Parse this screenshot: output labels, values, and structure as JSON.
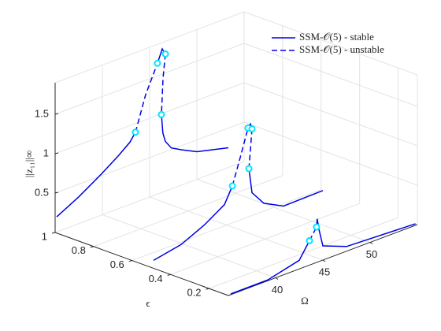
{
  "chart_data": {
    "type": "line3d",
    "xlabel": "Ω",
    "ylabel": "ϵ",
    "zlabel": "||z₁₁||∞",
    "xlim": [
      35,
      55
    ],
    "ylim": [
      0.1,
      1
    ],
    "zlim": [
      0,
      1.9
    ],
    "xticks": [
      40,
      45,
      50
    ],
    "yticks": [
      0.2,
      0.4,
      0.6,
      0.8,
      1
    ],
    "zticks": [
      0.5,
      1,
      1.5
    ],
    "grid": true,
    "legend": "top-right",
    "series": [
      {
        "name": "SSM-𝒪(5) - stable",
        "color": "#0000e6",
        "dashed": false,
        "segments": [
          {
            "y": 1,
            "x": [
              35.17,
              37.5,
              40,
              41.67,
              42.92,
              43.5
            ],
            "z": [
              0.19,
              0.34,
              0.53,
              0.67,
              0.79,
              0.89
            ]
          },
          {
            "y": 1,
            "x": [
              45.83,
              46.33,
              46.67
            ],
            "z": [
              1.66,
              1.82,
              1.74
            ]
          },
          {
            "y": 1,
            "x": [
              46.25,
              46.4,
              46.67,
              47.3,
              48.33,
              50,
              53.33
            ],
            "z": [
              0.99,
              0.75,
              0.63,
              0.52,
              0.45,
              0.35,
              0.25
            ]
          },
          {
            "y": 0.5,
            "x": [
              35.23,
              38.15,
              40.65,
              42.73,
              43.57
            ],
            "z": [
              0.08,
              0.15,
              0.29,
              0.45,
              0.65
            ]
          },
          {
            "y": 0.5,
            "x": [
              45.23,
              45.48,
              45.65
            ],
            "z": [
              1.31,
              1.35,
              1.28
            ]
          },
          {
            "y": 0.5,
            "x": [
              45.32,
              45.65,
              46.9,
              48.98,
              53.15
            ],
            "z": [
              0.79,
              0.47,
              0.28,
              0.15,
              0.16
            ]
          },
          {
            "y": 0.1,
            "x": [
              35.25,
              39.17,
              42.5,
              43.58
            ],
            "z": [
              0.01,
              0.01,
              0.11,
              0.31
            ]
          },
          {
            "y": 0.1,
            "x": [
              44.33,
              44.4,
              44.6,
              45,
              47.5,
              54.8
            ],
            "z": [
              0.45,
              0.55,
              0.4,
              0.18,
              0.06,
              0.02
            ]
          }
        ]
      },
      {
        "name": "SSM-𝒪(5) - unstable",
        "color": "#0000e6",
        "dashed": true,
        "segments": [
          {
            "y": 1,
            "x": [
              43.5,
              44.58,
              45.83
            ],
            "z": [
              0.89,
              1.32,
              1.66
            ]
          },
          {
            "y": 1,
            "x": [
              46.67,
              46.42,
              46.25
            ],
            "z": [
              1.74,
              1.44,
              0.99
            ]
          },
          {
            "y": 0.5,
            "x": [
              43.57,
              44.4,
              45.23
            ],
            "z": [
              0.65,
              0.97,
              1.31
            ]
          },
          {
            "y": 0.5,
            "x": [
              45.65,
              45.48,
              45.32
            ],
            "z": [
              1.28,
              1.02,
              0.79
            ]
          },
          {
            "y": 0.1,
            "x": [
              43.58,
              44.33
            ],
            "z": [
              0.31,
              0.45
            ]
          }
        ]
      }
    ],
    "markers": {
      "color": "#00e5ff",
      "x": [
        43.5,
        45.83,
        46.67,
        46.25,
        43.57,
        45.23,
        45.65,
        45.32,
        43.58,
        44.33
      ],
      "y": [
        1,
        1,
        1,
        1,
        0.5,
        0.5,
        0.5,
        0.5,
        0.1,
        0.1
      ],
      "z": [
        0.89,
        1.66,
        1.74,
        0.99,
        0.65,
        1.31,
        1.28,
        0.79,
        0.31,
        0.45
      ]
    }
  }
}
